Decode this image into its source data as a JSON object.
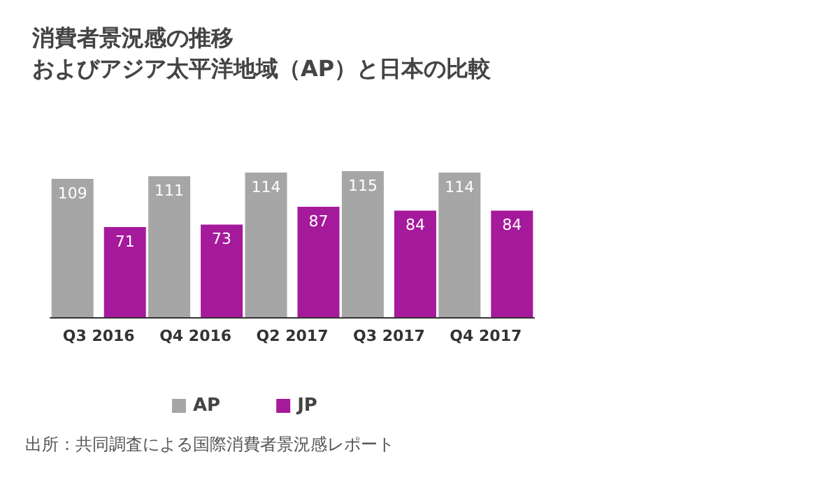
{
  "chart_data": {
    "type": "bar",
    "title": "消費者景況感の推移",
    "subtitle": "およびアジア太平洋地域（AP）と日本の比較",
    "categories": [
      "Q3 2016",
      "Q4 2016",
      "Q2 2017",
      "Q3 2017",
      "Q4 2017"
    ],
    "series": [
      {
        "name": "AP",
        "color": "#a6a6a6",
        "values": [
          109,
          111,
          114,
          115,
          114
        ]
      },
      {
        "name": "JP",
        "color": "#a5199b",
        "values": [
          71,
          73,
          87,
          84,
          84
        ]
      }
    ],
    "data_labels": true,
    "legend": "bottom",
    "annotations": [
      "出所：共同調査による国際消費者景況感レポート"
    ]
  }
}
